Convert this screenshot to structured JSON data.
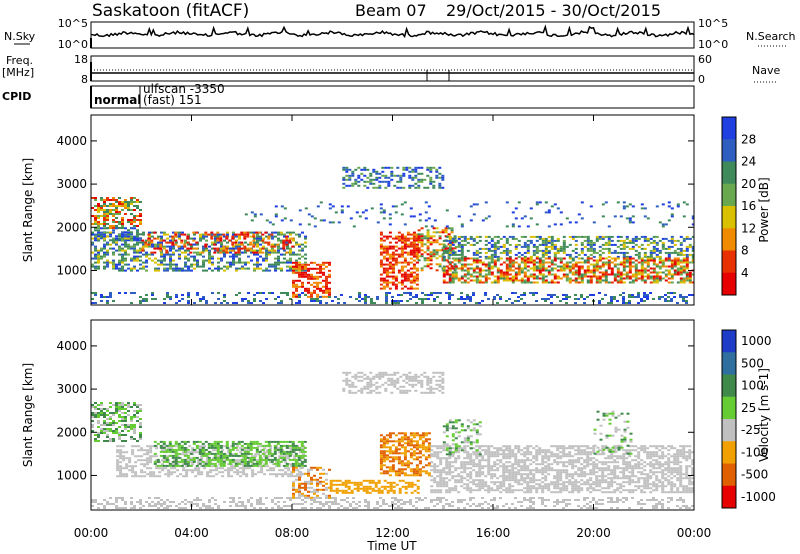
{
  "header": {
    "site": "Saskatoon (fitACF)",
    "beam": "Beam 07",
    "dates": "29/Oct/2015 - 30/Oct/2015"
  },
  "top_panels": {
    "nsky_label": "N.Sky",
    "nsearch_label": "N.Search",
    "noise_ticks": [
      "10^5",
      "10^0"
    ],
    "freq_label": "Freq.",
    "freq_unit": "[MHz]",
    "freq_ticks": [
      "18",
      "8"
    ],
    "nave_label": "Nave",
    "nave_ticks": [
      "60",
      "0"
    ],
    "cpid_label": "CPID",
    "cpid_modes": [
      "normal",
      "ulfscan -3350",
      "(fast) 151"
    ]
  },
  "chart_data": [
    {
      "type": "heatmap",
      "panel": "power",
      "ylabel": "Slant Range [km]",
      "yticks": [
        "1000",
        "2000",
        "3000",
        "4000"
      ],
      "ylim": [
        200,
        4600
      ],
      "colorbar_label": "Power [dB]",
      "colorbar_ticks": [
        "4",
        "8",
        "12",
        "16",
        "20",
        "24",
        "28"
      ],
      "colorbar_colors": [
        "#1f3fe0",
        "#2e5fc0",
        "#3f8a5a",
        "#6aa84f",
        "#d9c000",
        "#f08a00",
        "#e83000",
        "#e60000"
      ]
    },
    {
      "type": "heatmap",
      "panel": "velocity",
      "ylabel": "Slant Range [km]",
      "yticks": [
        "1000",
        "2000",
        "3000",
        "4000"
      ],
      "ylim": [
        200,
        4600
      ],
      "colorbar_label": "Velocity [m s-1]",
      "colorbar_ticks": [
        "1000",
        "500",
        "100",
        "25",
        "-25",
        "-100",
        "-500",
        "-1000"
      ],
      "colorbar_colors": [
        "#1e3cc8",
        "#2f6fa0",
        "#3f8a4a",
        "#66cc33",
        "#c0c0c0",
        "#f0a000",
        "#e06000",
        "#e60000"
      ]
    }
  ],
  "x_axis": {
    "ticks": [
      "00:00",
      "04:00",
      "08:00",
      "12:00",
      "16:00",
      "20:00",
      "00:00"
    ],
    "label": "Time UT"
  }
}
